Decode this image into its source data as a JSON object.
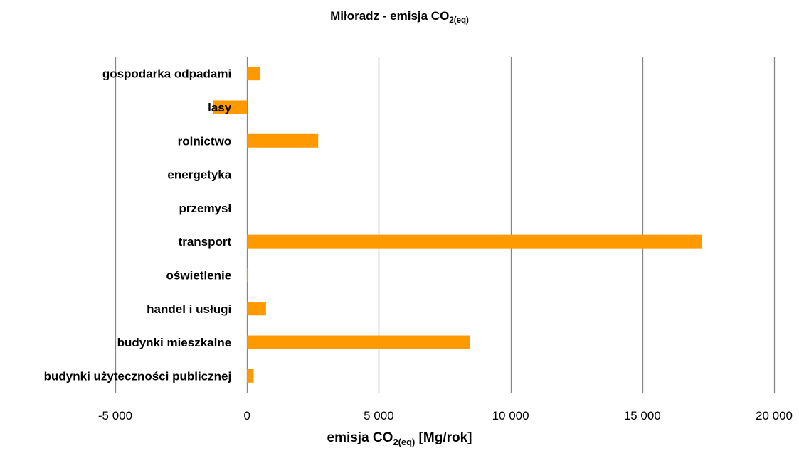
{
  "chart_data": {
    "type": "bar",
    "orientation": "horizontal",
    "title_main": "Miłoradz - emisja CO",
    "title_sub": "2(eq)",
    "xlabel_main": "emisja CO",
    "xlabel_sub": "2(eq)",
    "xlabel_unit": " [Mg/rok]",
    "categories": [
      "gospodarka odpadami",
      "lasy",
      "rolnictwo",
      "energetyka",
      "przemysł",
      "transport",
      "oświetlenie",
      "handel i usługi",
      "budynki mieszkalne",
      "budynki użyteczności publicznej"
    ],
    "values": [
      500,
      -1300,
      2700,
      0,
      0,
      17250,
      50,
      720,
      8450,
      250
    ],
    "xlim": [
      -5000,
      20000
    ],
    "xticks": [
      -5000,
      0,
      5000,
      10000,
      15000,
      20000
    ],
    "xtick_labels": [
      "-5 000",
      "0",
      "5 000",
      "10 000",
      "15 000",
      "20 000"
    ],
    "grid": true,
    "legend": "none",
    "colors": {
      "bar": "#FF9900",
      "grid": "#868686"
    }
  }
}
